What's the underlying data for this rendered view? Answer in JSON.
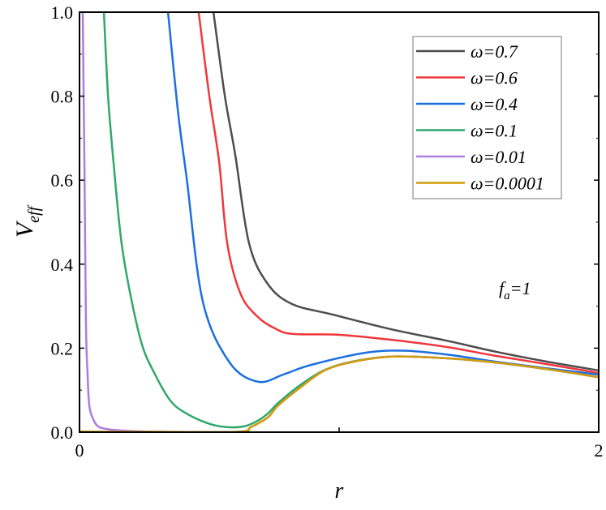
{
  "chart_data": {
    "type": "line",
    "title": "",
    "xlabel": "r",
    "ylabel_main": "V",
    "ylabel_sub": "eff",
    "xlim": [
      0,
      2
    ],
    "ylim": [
      0,
      1.0
    ],
    "x_ticks": [
      0,
      1,
      2
    ],
    "x_tick_labels": [
      "0",
      "",
      "2"
    ],
    "y_ticks": [
      0,
      0.2,
      0.4,
      0.6,
      0.8,
      1.0
    ],
    "y_tick_labels": [
      "0.0",
      "0.2",
      "0.4",
      "0.6",
      "0.8",
      "1.0"
    ],
    "grid": false,
    "legend_position": "top-right",
    "annotation": {
      "main": "f",
      "sub": "a",
      "rest": "=1"
    },
    "series": [
      {
        "name": "ω=0.7",
        "color": "#4d4d4d",
        "points": [
          [
            0.516,
            1.0
          ],
          [
            0.56,
            0.8
          ],
          [
            0.6,
            0.66
          ],
          [
            0.653,
            0.45
          ],
          [
            0.725,
            0.353
          ],
          [
            0.819,
            0.305
          ],
          [
            0.975,
            0.28
          ],
          [
            1.2,
            0.245
          ],
          [
            1.413,
            0.218
          ],
          [
            1.6,
            0.192
          ],
          [
            1.8,
            0.168
          ],
          [
            2.0,
            0.147
          ]
        ]
      },
      {
        "name": "ω=0.6",
        "color": "#f0373c",
        "points": [
          [
            0.459,
            1.0
          ],
          [
            0.5,
            0.8
          ],
          [
            0.538,
            0.643
          ],
          [
            0.569,
            0.45
          ],
          [
            0.62,
            0.33
          ],
          [
            0.684,
            0.276
          ],
          [
            0.75,
            0.248
          ],
          [
            0.819,
            0.234
          ],
          [
            0.997,
            0.232
          ],
          [
            1.2,
            0.22
          ],
          [
            1.413,
            0.203
          ],
          [
            1.6,
            0.182
          ],
          [
            1.8,
            0.162
          ],
          [
            2.0,
            0.141
          ]
        ]
      },
      {
        "name": "ω=0.4",
        "color": "#1c6fe0",
        "points": [
          [
            0.341,
            1.0
          ],
          [
            0.38,
            0.76
          ],
          [
            0.413,
            0.604
          ],
          [
            0.475,
            0.311
          ],
          [
            0.578,
            0.166
          ],
          [
            0.688,
            0.12
          ],
          [
            0.788,
            0.138
          ],
          [
            0.891,
            0.16
          ],
          [
            1.1,
            0.189
          ],
          [
            1.25,
            0.194
          ],
          [
            1.413,
            0.185
          ],
          [
            1.6,
            0.168
          ],
          [
            1.8,
            0.152
          ],
          [
            2.0,
            0.137
          ]
        ]
      },
      {
        "name": "ω=0.1",
        "color": "#2fa86a",
        "points": [
          [
            0.094,
            1.0
          ],
          [
            0.11,
            0.8
          ],
          [
            0.131,
            0.643
          ],
          [
            0.16,
            0.46
          ],
          [
            0.194,
            0.334
          ],
          [
            0.24,
            0.21
          ],
          [
            0.288,
            0.141
          ],
          [
            0.35,
            0.075
          ],
          [
            0.413,
            0.044
          ],
          [
            0.5,
            0.02
          ],
          [
            0.569,
            0.012
          ],
          [
            0.631,
            0.0135
          ],
          [
            0.68,
            0.025
          ],
          [
            0.725,
            0.044
          ],
          [
            0.766,
            0.07
          ],
          [
            0.85,
            0.112
          ],
          [
            0.944,
            0.148
          ],
          [
            1.05,
            0.168
          ],
          [
            1.203,
            0.18
          ],
          [
            1.413,
            0.176
          ],
          [
            1.6,
            0.166
          ],
          [
            1.8,
            0.15
          ],
          [
            2.0,
            0.131
          ]
        ]
      },
      {
        "name": "ω=0.01",
        "color": "#b07be0",
        "points": [
          [
            0.0125,
            1.0
          ],
          [
            0.016,
            0.8
          ],
          [
            0.019,
            0.64
          ],
          [
            0.025,
            0.257
          ],
          [
            0.031,
            0.14
          ],
          [
            0.0375,
            0.064
          ],
          [
            0.05,
            0.035
          ],
          [
            0.069,
            0.015
          ],
          [
            0.1,
            0.008
          ],
          [
            0.16,
            0.004
          ],
          [
            0.3,
            0.001
          ],
          [
            0.61,
            0.001
          ],
          [
            0.66,
            0.012
          ],
          [
            0.725,
            0.035
          ],
          [
            0.766,
            0.064
          ],
          [
            0.85,
            0.106
          ],
          [
            0.944,
            0.147
          ],
          [
            1.05,
            0.167
          ],
          [
            1.203,
            0.18
          ],
          [
            1.413,
            0.176
          ],
          [
            1.6,
            0.166
          ],
          [
            1.8,
            0.15
          ],
          [
            2.0,
            0.131
          ]
        ]
      },
      {
        "name": "ω=0.0001",
        "color": "#d19c0c",
        "points": [
          [
            0.0,
            0.01
          ],
          [
            0.003,
            0.002
          ],
          [
            0.3,
            0.001
          ],
          [
            0.615,
            0.001
          ],
          [
            0.66,
            0.012
          ],
          [
            0.725,
            0.035
          ],
          [
            0.766,
            0.064
          ],
          [
            0.85,
            0.106
          ],
          [
            0.944,
            0.147
          ],
          [
            1.05,
            0.167
          ],
          [
            1.203,
            0.18
          ],
          [
            1.413,
            0.176
          ],
          [
            1.6,
            0.166
          ],
          [
            1.8,
            0.15
          ],
          [
            2.0,
            0.131
          ]
        ]
      }
    ]
  }
}
